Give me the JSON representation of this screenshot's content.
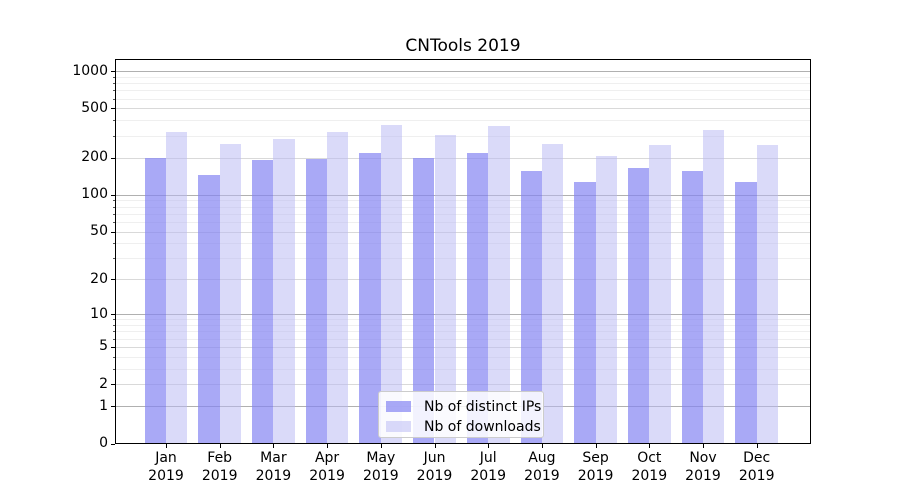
{
  "title": "CNTools 2019",
  "colors": {
    "bar_distinct_ips": "rgba(133,133,242,0.70)",
    "bar_downloads": "rgba(184,184,243,0.52)",
    "grid_major": "#b0b0b0",
    "grid_mid": "#d9d9d9",
    "grid_minor": "#efefef",
    "axis": "#000000",
    "legend_border": "#cccccc"
  },
  "chart_data": {
    "type": "bar",
    "title": "CNTools 2019",
    "categories": [
      "Jan 2019",
      "Feb 2019",
      "Mar 2019",
      "Apr 2019",
      "May 2019",
      "Jun 2019",
      "Jul 2019",
      "Aug 2019",
      "Sep 2019",
      "Oct 2019",
      "Nov 2019",
      "Dec 2019"
    ],
    "series": [
      {
        "name": "Nb of distinct IPs",
        "values": [
          200,
          145,
          192,
          196,
          219,
          200,
          217,
          156,
          128,
          165,
          157,
          126
        ]
      },
      {
        "name": "Nb of downloads",
        "values": [
          320,
          257,
          285,
          322,
          370,
          305,
          361,
          257,
          206,
          254,
          334,
          251
        ]
      }
    ],
    "yscale": "log1p",
    "ylim": [
      0,
      1240
    ],
    "y_ticks": [
      0,
      1,
      2,
      5,
      10,
      20,
      50,
      100,
      200,
      500,
      1000
    ],
    "y_minor_ticks": [
      3,
      4,
      6,
      7,
      8,
      9,
      30,
      40,
      60,
      70,
      80,
      90,
      300,
      400,
      600,
      700,
      800,
      900
    ],
    "grid": true,
    "legend_position": "lower-center"
  }
}
